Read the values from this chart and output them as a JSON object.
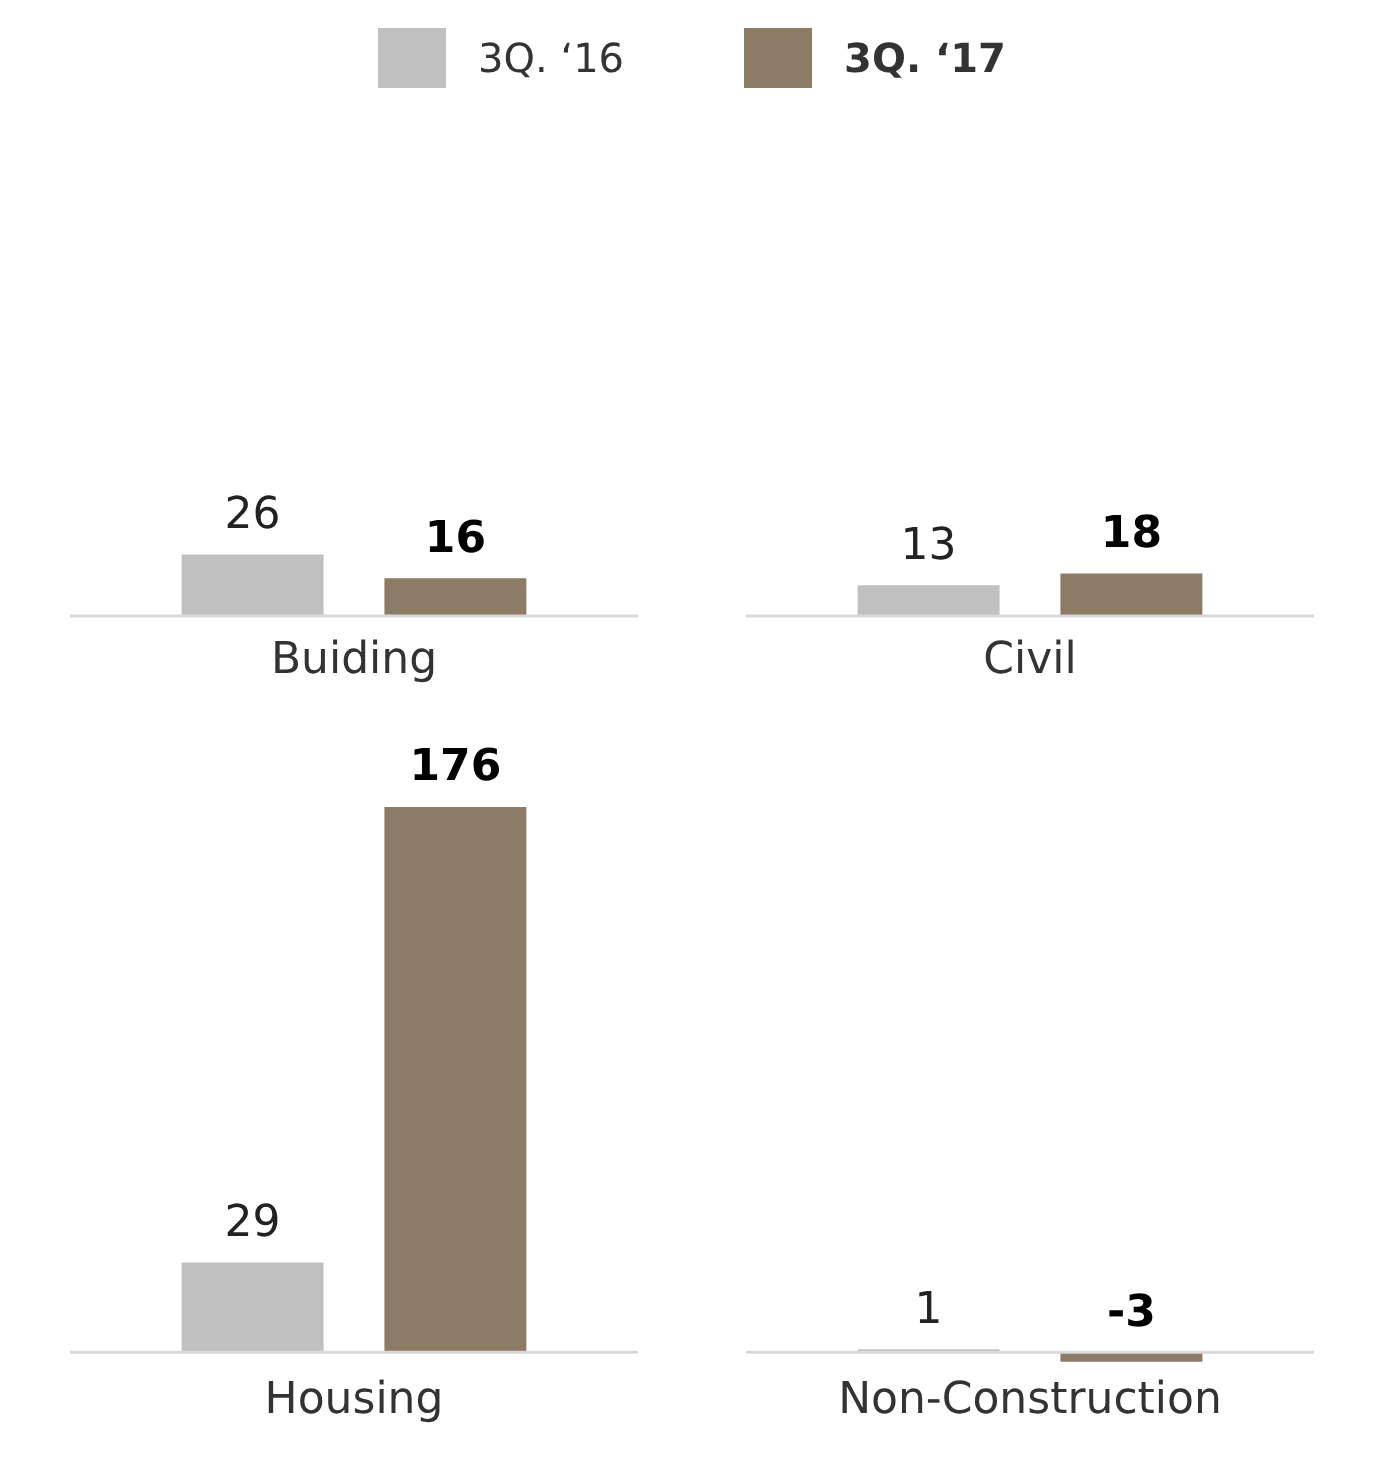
{
  "chart_data": [
    {
      "type": "bar",
      "categories": [
        "Buiding",
        "Civil"
      ],
      "legend": "top",
      "data_labels": true,
      "series": [
        {
          "name": "3Q. ‘16",
          "color": "#c0c0c0",
          "values": [
            26,
            13
          ]
        },
        {
          "name": "3Q. ‘17",
          "color": "#8c7b65",
          "values": [
            16,
            18
          ]
        }
      ]
    },
    {
      "type": "bar",
      "categories": [
        "Housing",
        "Non-Construction"
      ],
      "data_labels": true,
      "series": [
        {
          "color": "#c0c0c0",
          "values": [
            29,
            1
          ]
        },
        {
          "color": "#8c7b65",
          "values": [
            176,
            -3
          ]
        }
      ]
    }
  ]
}
